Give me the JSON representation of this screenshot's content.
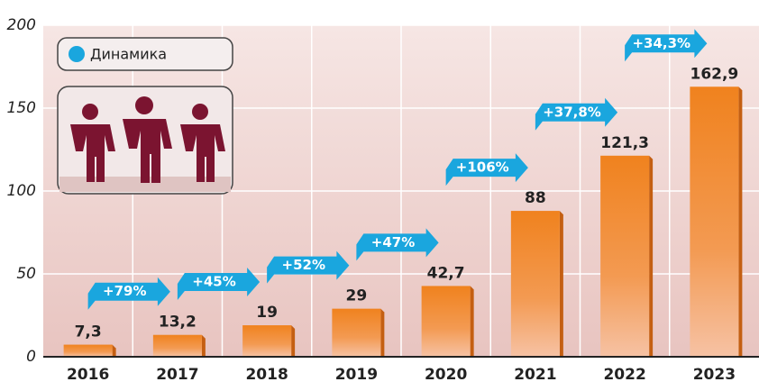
{
  "chart_data": {
    "type": "bar",
    "categories": [
      "2016",
      "2017",
      "2018",
      "2019",
      "2020",
      "2021",
      "2022",
      "2023"
    ],
    "values": [
      7.3,
      13.2,
      19,
      29,
      42.7,
      88,
      121.3,
      162.9
    ],
    "value_labels": [
      "7,3",
      "13,2",
      "19",
      "29",
      "42,7",
      "88",
      "121,3",
      "162,9"
    ],
    "color": "#f0821e",
    "ylim": [
      0,
      200
    ],
    "yticks": [
      0,
      50,
      100,
      150,
      200
    ],
    "grid": true,
    "legend": "Динамика",
    "annotation_color": "#1aa6de",
    "annotations": [
      "+79%",
      "+45%",
      "+52%",
      "+47%",
      "+106%",
      "+37,8%",
      "+34,3%"
    ]
  }
}
